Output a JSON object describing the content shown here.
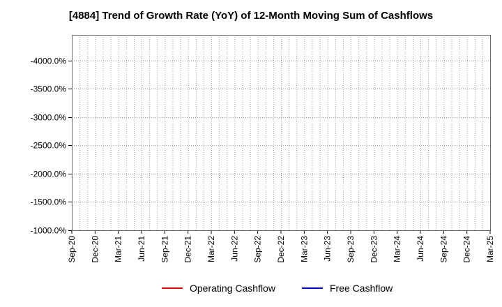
{
  "chart_data": {
    "type": "line",
    "title": "[4884]  Trend of Growth Rate (YoY) of 12-Month Moving Sum of Cashflows",
    "xlabel": "",
    "ylabel": "",
    "x_start": "Sep-20",
    "x_end": "Mar-25",
    "x_tick_labels": [
      "Sep-20",
      "Dec-20",
      "Mar-21",
      "Jun-21",
      "Sep-21",
      "Dec-21",
      "Mar-22",
      "Jun-22",
      "Sep-22",
      "Dec-22",
      "Mar-23",
      "Jun-23",
      "Sep-23",
      "Dec-23",
      "Mar-24",
      "Jun-24",
      "Sep-24",
      "Dec-24",
      "Mar-25"
    ],
    "y_ticks": [
      -4000,
      -3500,
      -3000,
      -2500,
      -2000,
      -1500,
      -1000
    ],
    "y_tick_labels": [
      "-4000.0%",
      "-3500.0%",
      "-3000.0%",
      "-2500.0%",
      "-2000.0%",
      "-1500.0%",
      "-1000.0%"
    ],
    "ylim": [
      -1000,
      -4450
    ],
    "y_inverted": true,
    "grid": "dotted, monthly vertical lines and horizontal lines at y ticks",
    "legend_position": "bottom",
    "series": [
      {
        "name": "Operating Cashflow",
        "color": "#e00000",
        "values": []
      },
      {
        "name": "Free Cashflow",
        "color": "#0000c0",
        "values": []
      }
    ]
  }
}
